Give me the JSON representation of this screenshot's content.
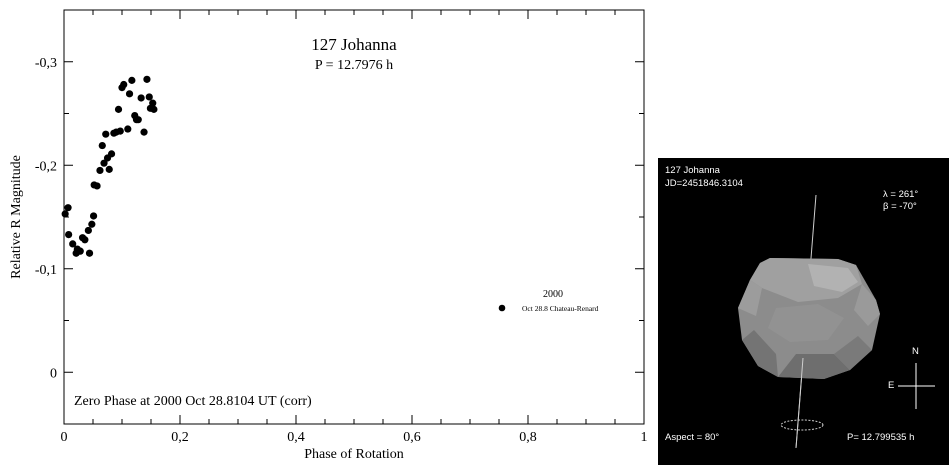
{
  "chart_data": {
    "type": "scatter",
    "title": "127 Johanna",
    "subtitle": "P = 12.7976 h",
    "xlabel": "Phase of Rotation",
    "ylabel": "Relative R Magnitude",
    "xlim": [
      0,
      1
    ],
    "ylim": [
      0.05,
      -0.35
    ],
    "y_inverted": true,
    "x_ticks": [
      "0",
      "0,2",
      "0,4",
      "0,6",
      "0,8",
      "1"
    ],
    "x_tick_values": [
      0,
      0.2,
      0.4,
      0.6,
      0.8,
      1
    ],
    "y_ticks": [
      "-0,3",
      "-0,2",
      "-0,1",
      "0"
    ],
    "y_tick_values": [
      -0.3,
      -0.2,
      -0.1,
      0
    ],
    "grid": false,
    "annotation": "Zero Phase at 2000 Oct 28.8104 UT (corr)",
    "legend": {
      "placement": "right",
      "title": "2000",
      "entries": [
        {
          "label": "Oct 28.8 Chateau-Renard",
          "marker": "filled-circle"
        }
      ]
    },
    "series": [
      {
        "name": "Oct 28.8 Chateau-Renard",
        "color": "#000000",
        "points": [
          [
            0.002,
            -0.153
          ],
          [
            0.007,
            -0.159
          ],
          [
            0.008,
            -0.133
          ],
          [
            0.015,
            -0.124
          ],
          [
            0.021,
            -0.115
          ],
          [
            0.023,
            -0.119
          ],
          [
            0.028,
            -0.117
          ],
          [
            0.032,
            -0.13
          ],
          [
            0.036,
            -0.128
          ],
          [
            0.042,
            -0.137
          ],
          [
            0.044,
            -0.115
          ],
          [
            0.048,
            -0.143
          ],
          [
            0.051,
            -0.151
          ],
          [
            0.052,
            -0.181
          ],
          [
            0.057,
            -0.18
          ],
          [
            0.062,
            -0.195
          ],
          [
            0.066,
            -0.219
          ],
          [
            0.069,
            -0.202
          ],
          [
            0.072,
            -0.23
          ],
          [
            0.075,
            -0.207
          ],
          [
            0.078,
            -0.196
          ],
          [
            0.082,
            -0.211
          ],
          [
            0.086,
            -0.231
          ],
          [
            0.09,
            -0.232
          ],
          [
            0.094,
            -0.254
          ],
          [
            0.097,
            -0.233
          ],
          [
            0.1,
            -0.275
          ],
          [
            0.103,
            -0.278
          ],
          [
            0.11,
            -0.235
          ],
          [
            0.113,
            -0.269
          ],
          [
            0.117,
            -0.282
          ],
          [
            0.122,
            -0.248
          ],
          [
            0.125,
            -0.244
          ],
          [
            0.128,
            -0.244
          ],
          [
            0.133,
            -0.265
          ],
          [
            0.138,
            -0.232
          ],
          [
            0.143,
            -0.283
          ],
          [
            0.147,
            -0.266
          ],
          [
            0.149,
            -0.255
          ],
          [
            0.153,
            -0.26
          ],
          [
            0.155,
            -0.254
          ]
        ]
      }
    ]
  },
  "shape_model": {
    "object": "127 Johanna",
    "jd": "JD=2451846.3104",
    "lambda": "λ = 261°",
    "beta": "β = -70°",
    "compass_n": "N",
    "compass_e": "E",
    "aspect": "Aspect = 80°",
    "period": "P= 12.799535 h",
    "background": "#000000",
    "body_color": "#8c8c8c"
  }
}
